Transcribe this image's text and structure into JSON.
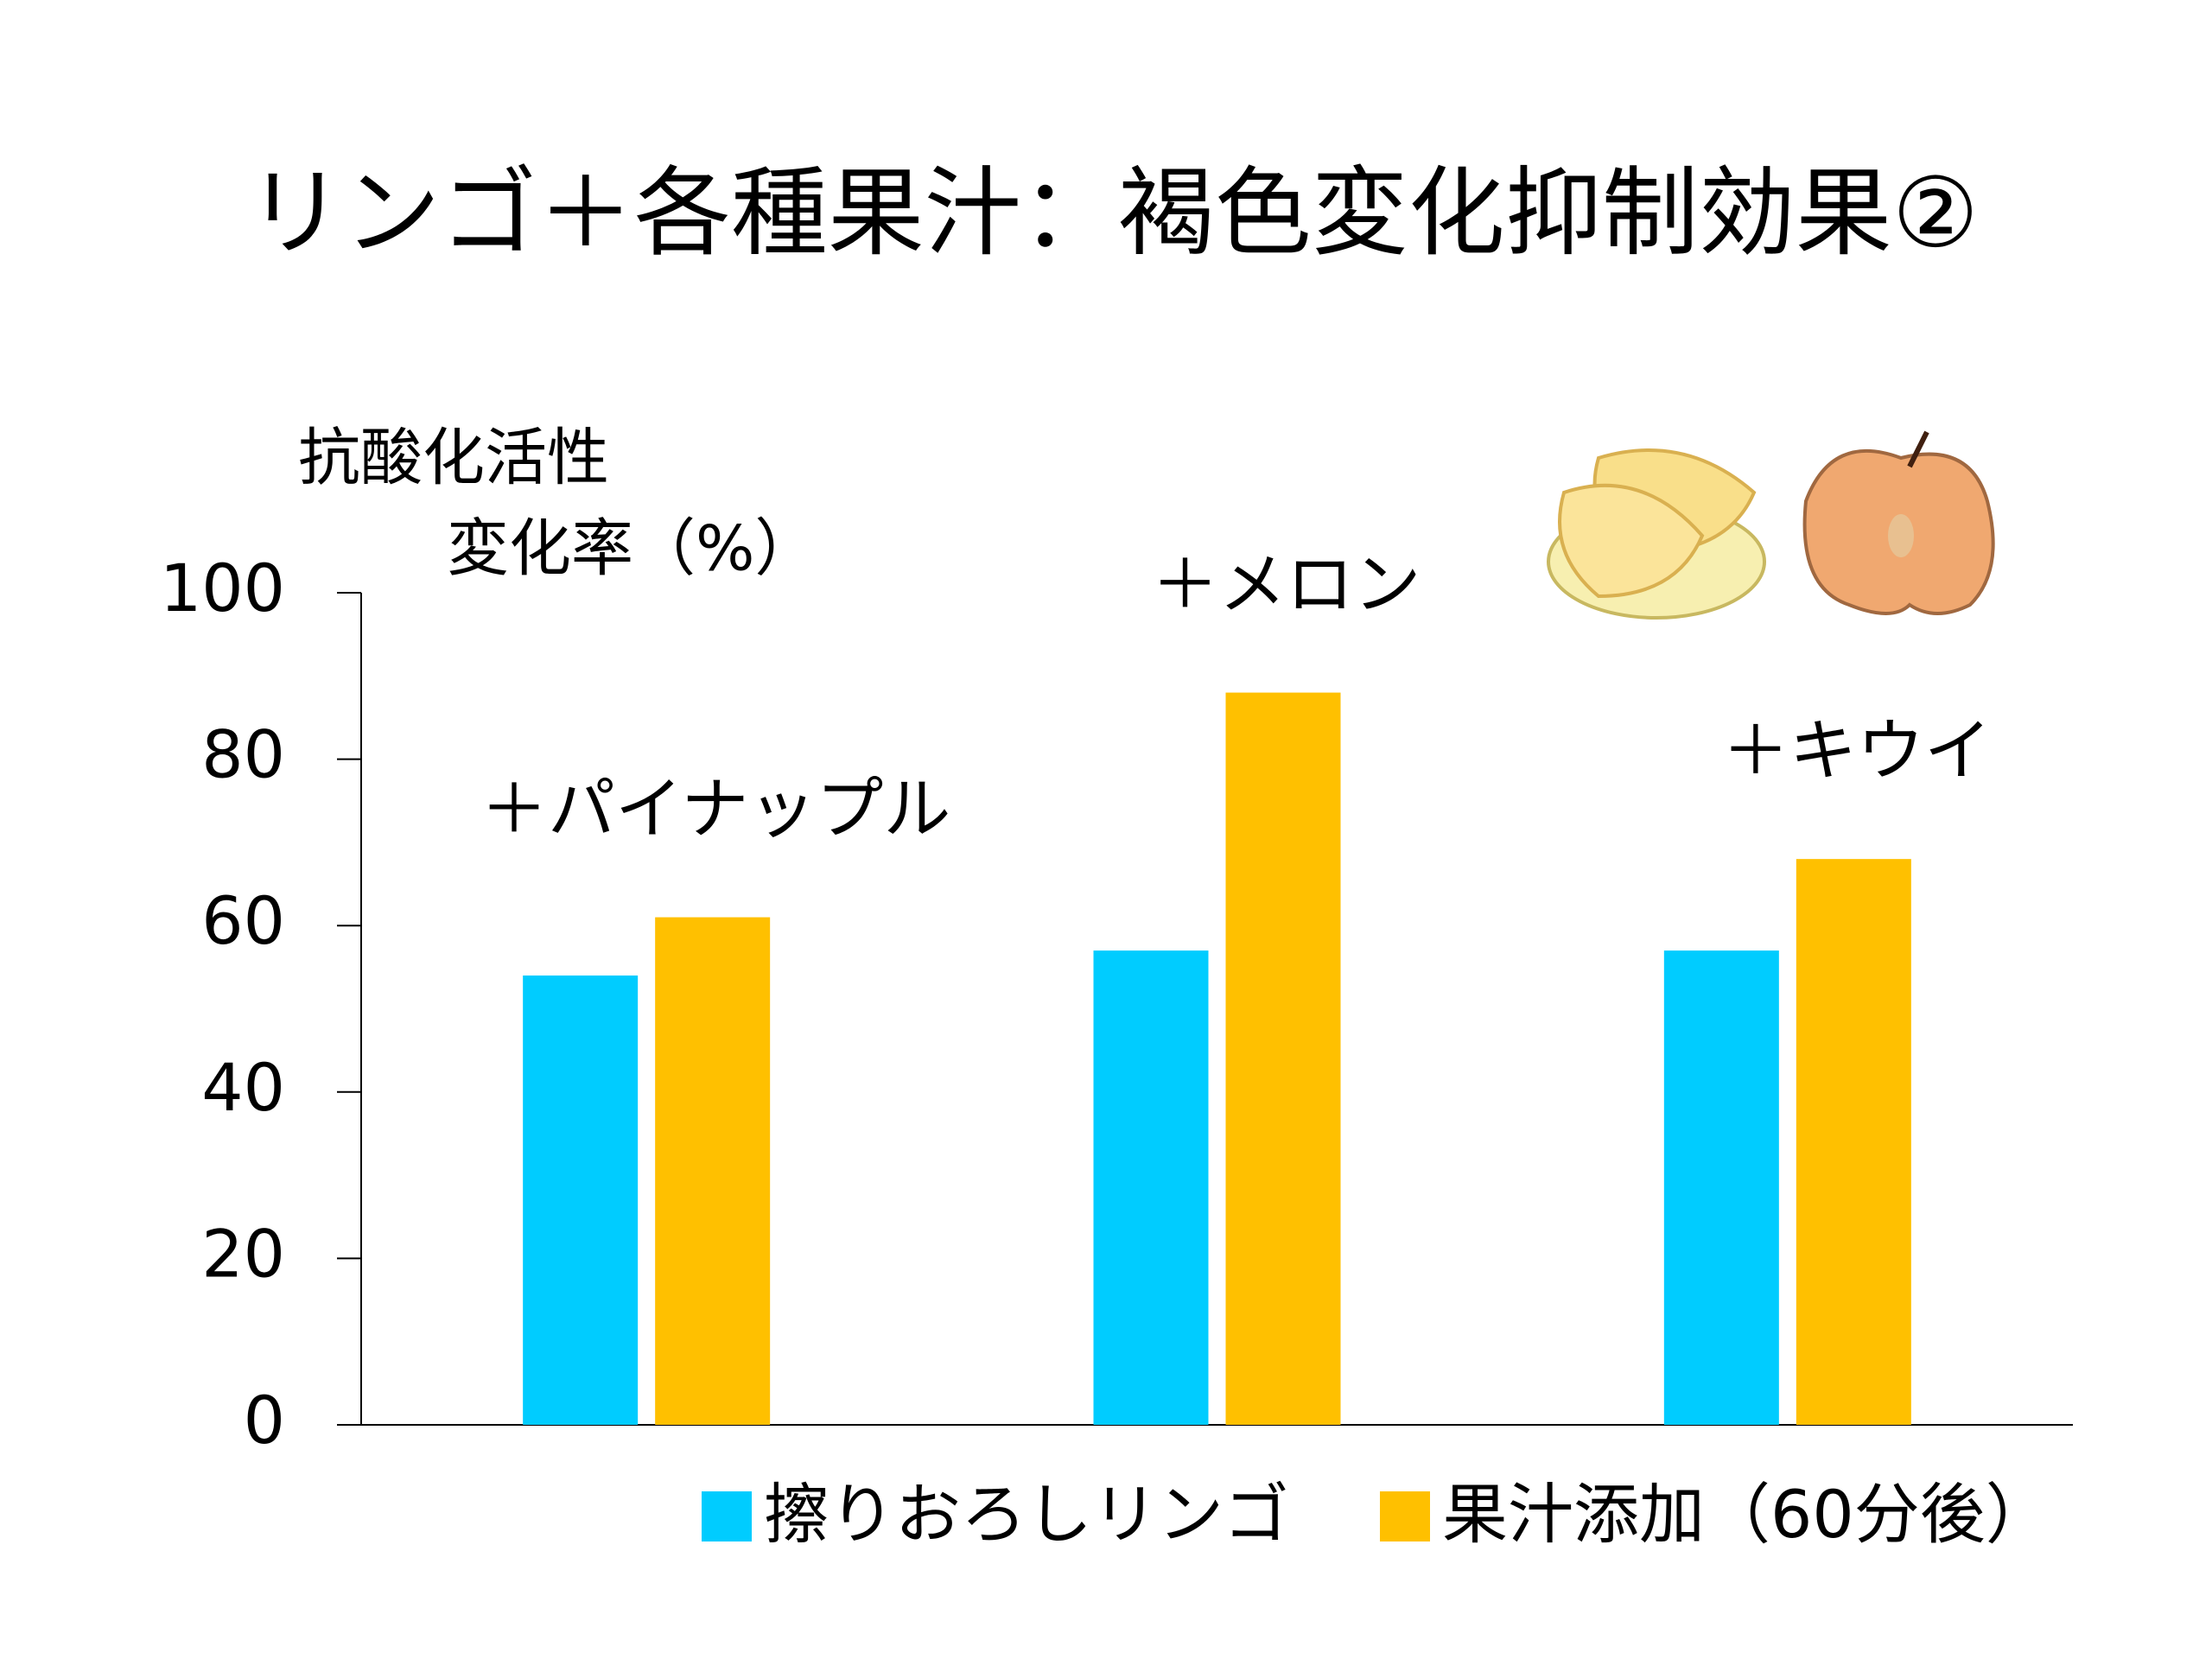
{
  "chart_data": {
    "type": "bar",
    "title": "リンゴ＋各種果汁：褐色変化抑制効果②",
    "y_label": [
      "抗酸化活性",
      "変化率（%）"
    ],
    "categories": [
      "＋パイナップル",
      "＋メロン",
      "＋キウイ"
    ],
    "series": [
      {
        "name": "擦りおろしリンゴ",
        "color": "#00ccff",
        "values": [
          54,
          57,
          57
        ]
      },
      {
        "name": "果汁添加（60分後）",
        "color": "#ffc000",
        "values": [
          61,
          88,
          68
        ]
      }
    ],
    "ylim": [
      0,
      100
    ],
    "yticks": [
      0,
      20,
      40,
      60,
      80,
      100
    ],
    "grid": false
  }
}
